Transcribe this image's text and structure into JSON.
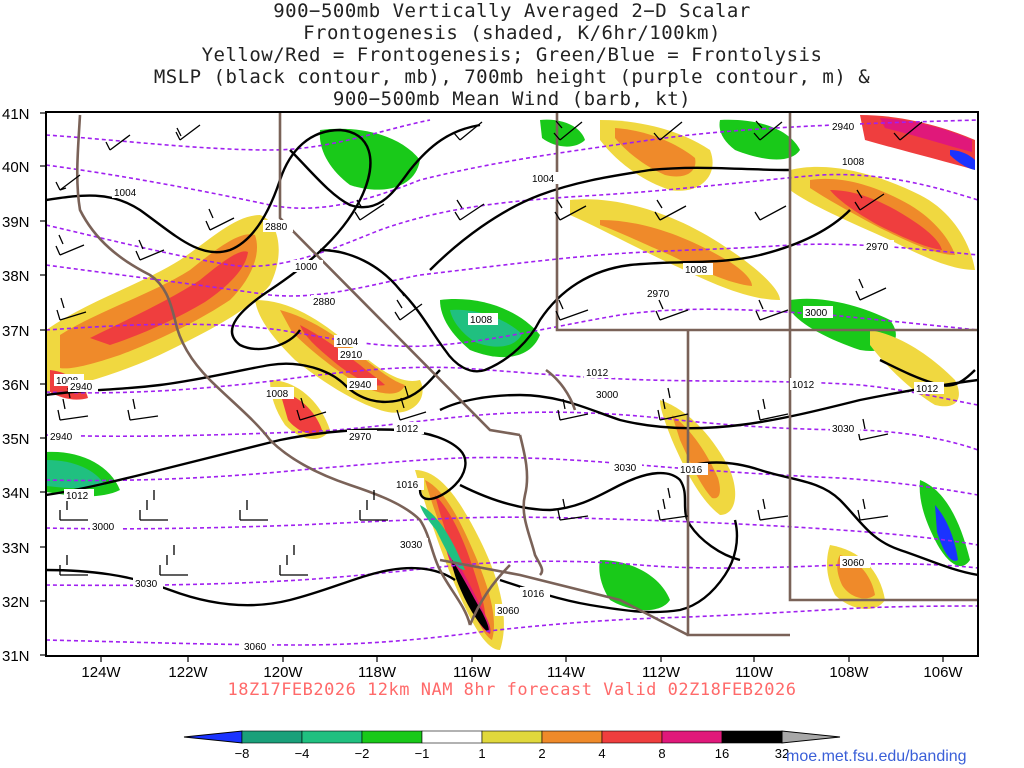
{
  "title": {
    "lines": [
      "900−500mb Vertically Averaged 2−D Scalar",
      "Frontogenesis (shaded, K/6hr/100km)",
      "Yellow/Red = Frontogenesis;  Green/Blue = Frontolysis",
      "MSLP (black contour, mb), 700mb height (purple contour, m) &",
      "900−500mb Mean Wind (barb, kt)"
    ]
  },
  "map": {
    "lat_labels": [
      "41N",
      "40N",
      "39N",
      "38N",
      "37N",
      "36N",
      "35N",
      "34N",
      "33N",
      "32N",
      "31N"
    ],
    "lon_labels": [
      "124W",
      "122W",
      "120W",
      "118W",
      "116W",
      "114W",
      "112W",
      "110W",
      "108W",
      "106W"
    ],
    "mslp_labels": [
      "1004",
      "1004",
      "1000",
      "1004",
      "1008",
      "1008",
      "1008",
      "1008",
      "1012",
      "1012",
      "1012",
      "1012",
      "1012",
      "1016",
      "1016",
      "1016",
      "1008"
    ],
    "height_labels": [
      "2940",
      "2880",
      "2880",
      "2910",
      "2940",
      "2970",
      "2970",
      "2940",
      "3000",
      "3000",
      "3030",
      "3030",
      "3030",
      "3060",
      "3060",
      "2970",
      "2940",
      "3000",
      "3030",
      "3060"
    ],
    "colors": {
      "frame": "#000000",
      "border": "#7a6258",
      "mslp": "#000000",
      "height": "#a020f0"
    }
  },
  "footer": {
    "text": "18Z17FEB2026 12km NAM 8hr forecast Valid 02Z18FEB2026"
  },
  "colorbar": {
    "labels": [
      "−8",
      "−4",
      "−2",
      "−1",
      "1",
      "2",
      "4",
      "8",
      "16",
      "32"
    ],
    "colors": [
      "#1a33ff",
      "#1aa07a",
      "#20c080",
      "#19c919",
      "#ffffff",
      "#e0d83c",
      "#ef8a2a",
      "#ef3e3e",
      "#e0187a",
      "#000000",
      "#a8a8a8"
    ]
  },
  "credit": {
    "url": "moe.met.fsu.edu/banding"
  }
}
